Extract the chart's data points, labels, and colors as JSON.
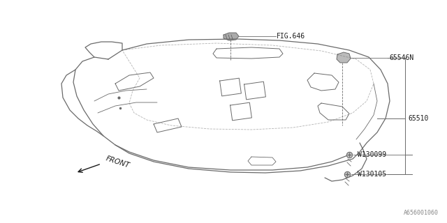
{
  "bg_color": "#ffffff",
  "line_color": "#6a6a6a",
  "text_color": "#1a1a1a",
  "watermark": "A656001060",
  "fig646_label": "FIG.646",
  "label_65546N": "65546N",
  "label_65510": "65510",
  "label_W130099": "W130099",
  "label_W130105": "W130105",
  "front_text": "FRONT"
}
